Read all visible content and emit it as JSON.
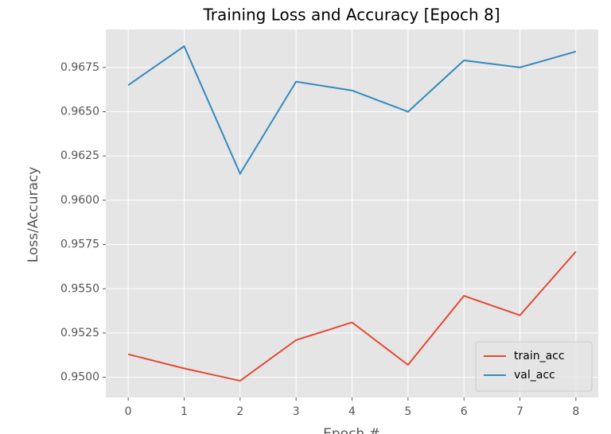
{
  "chart_data": {
    "type": "line",
    "title": "Training Loss and Accuracy [Epoch 8]",
    "x_label": "Epoch #",
    "y_label": "Loss/Accuracy",
    "x": [
      0,
      1,
      2,
      3,
      4,
      5,
      6,
      7,
      8
    ],
    "series": [
      {
        "name": "train_acc",
        "color": "#E24A33",
        "values": [
          0.9513,
          0.9505,
          0.9498,
          0.9521,
          0.9531,
          0.9507,
          0.9546,
          0.9535,
          0.9571
        ]
      },
      {
        "name": "val_acc",
        "color": "#348ABD",
        "values": [
          0.9665,
          0.9687,
          0.9615,
          0.9667,
          0.9662,
          0.965,
          0.9679,
          0.9675,
          0.9684
        ]
      }
    ],
    "xlim": [
      -0.4,
      8.4
    ],
    "xticks": [
      0,
      1,
      2,
      3,
      4,
      5,
      6,
      7,
      8
    ],
    "ylim": [
      0.94886,
      0.96965
    ],
    "yticks": [
      {
        "value": 0.95,
        "label": "0.9500"
      },
      {
        "value": 0.9525,
        "label": "0.9525"
      },
      {
        "value": 0.955,
        "label": "0.9550"
      },
      {
        "value": 0.9575,
        "label": "0.9575"
      },
      {
        "value": 0.96,
        "label": "0.9600"
      },
      {
        "value": 0.9625,
        "label": "0.9625"
      },
      {
        "value": 0.965,
        "label": "0.9650"
      },
      {
        "value": 0.9675,
        "label": "0.9675"
      }
    ],
    "grid": true,
    "legend": "lower right"
  }
}
